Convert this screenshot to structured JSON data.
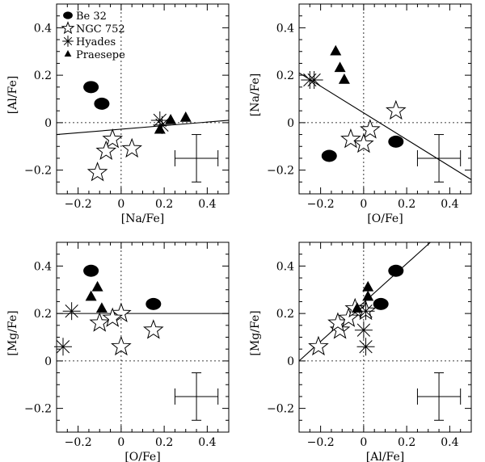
{
  "chart_data": {
    "type": "scatter",
    "legend": {
      "placement": "top-left of first panel",
      "entries": [
        {
          "name": "Be 32",
          "marker": "filled-ellipse"
        },
        {
          "name": "NGC 752",
          "marker": "open-star"
        },
        {
          "name": "Hyades",
          "marker": "asterisk"
        },
        {
          "name": "Praesepe",
          "marker": "filled-triangle"
        }
      ]
    },
    "panels": [
      {
        "id": "al-vs-na",
        "xlabel": "[Na/Fe]",
        "ylabel": "[Al/Fe]",
        "xlim": [
          -0.3,
          0.5
        ],
        "ylim": [
          -0.3,
          0.5
        ],
        "xticks": [
          -0.2,
          0,
          0.2,
          0.4
        ],
        "xtick_labels": [
          "−0.2",
          "0",
          "0.2",
          "0.4"
        ],
        "yticks": [
          -0.2,
          0,
          0.2,
          0.4
        ],
        "ytick_labels": [
          "−0.2",
          "0",
          "0.2",
          "0.4"
        ],
        "zero_lines": true,
        "fit_line": {
          "x": [
            -0.3,
            0.5
          ],
          "y": [
            -0.05,
            0.01
          ]
        },
        "error_bar": {
          "x": 0.35,
          "y": -0.15,
          "dx": 0.1,
          "dy": 0.1
        },
        "series": [
          {
            "name": "Be 32",
            "points": [
              [
                -0.14,
                0.15
              ],
              [
                -0.09,
                0.08
              ]
            ]
          },
          {
            "name": "NGC 752",
            "points": [
              [
                -0.04,
                -0.07
              ],
              [
                -0.07,
                -0.12
              ],
              [
                0.05,
                -0.11
              ],
              [
                -0.11,
                -0.21
              ]
            ]
          },
          {
            "name": "Hyades",
            "points": [
              [
                0.18,
                0.01
              ],
              [
                0.19,
                -0.01
              ]
            ]
          },
          {
            "name": "Praesepe",
            "points": [
              [
                0.18,
                -0.03
              ],
              [
                0.23,
                0.01
              ],
              [
                0.3,
                0.02
              ]
            ]
          }
        ]
      },
      {
        "id": "na-vs-o",
        "xlabel": "[O/Fe]",
        "ylabel": "[Na/Fe]",
        "xlim": [
          -0.3,
          0.5
        ],
        "ylim": [
          -0.3,
          0.5
        ],
        "xticks": [
          -0.2,
          0,
          0.2,
          0.4
        ],
        "xtick_labels": [
          "−0.2",
          "0",
          "0.2",
          "0.4"
        ],
        "yticks": [
          -0.2,
          0,
          0.2,
          0.4
        ],
        "ytick_labels": [
          "−0.2",
          "0",
          "0.2",
          "0.4"
        ],
        "zero_lines": true,
        "fit_line": {
          "x": [
            -0.3,
            0.5
          ],
          "y": [
            0.21,
            -0.24
          ]
        },
        "error_bar": {
          "x": 0.35,
          "y": -0.15,
          "dx": 0.1,
          "dy": 0.1
        },
        "series": [
          {
            "name": "Be 32",
            "points": [
              [
                -0.16,
                -0.14
              ],
              [
                0.15,
                -0.08
              ]
            ]
          },
          {
            "name": "NGC 752",
            "points": [
              [
                0.15,
                0.05
              ],
              [
                0.03,
                -0.03
              ],
              [
                -0.06,
                -0.07
              ],
              [
                0.0,
                -0.09
              ]
            ]
          },
          {
            "name": "Hyades",
            "points": [
              [
                -0.25,
                0.18
              ],
              [
                -0.23,
                0.18
              ]
            ]
          },
          {
            "name": "Praesepe",
            "points": [
              [
                -0.13,
                0.3
              ],
              [
                -0.11,
                0.23
              ],
              [
                -0.09,
                0.18
              ]
            ]
          }
        ]
      },
      {
        "id": "mg-vs-o",
        "xlabel": "[O/Fe]",
        "ylabel": "[Mg/Fe]",
        "xlim": [
          -0.3,
          0.5
        ],
        "ylim": [
          -0.3,
          0.5
        ],
        "xticks": [
          -0.2,
          0,
          0.2,
          0.4
        ],
        "xtick_labels": [
          "−0.2",
          "0",
          "0.2",
          "0.4"
        ],
        "yticks": [
          -0.2,
          0,
          0.2,
          0.4
        ],
        "ytick_labels": [
          "−0.2",
          "0",
          "0.2",
          "0.4"
        ],
        "zero_lines": true,
        "fit_line": {
          "x": [
            -0.3,
            0.5
          ],
          "y": [
            0.2,
            0.2
          ]
        },
        "error_bar": {
          "x": 0.35,
          "y": -0.15,
          "dx": 0.1,
          "dy": 0.1
        },
        "series": [
          {
            "name": "Be 32",
            "points": [
              [
                -0.14,
                0.38
              ],
              [
                0.15,
                0.24
              ]
            ]
          },
          {
            "name": "NGC 752",
            "points": [
              [
                0.0,
                0.2
              ],
              [
                -0.1,
                0.16
              ],
              [
                -0.04,
                0.18
              ],
              [
                0.15,
                0.13
              ],
              [
                0.0,
                0.06
              ]
            ]
          },
          {
            "name": "Hyades",
            "points": [
              [
                -0.23,
                0.21
              ],
              [
                -0.27,
                0.06
              ]
            ]
          },
          {
            "name": "Praesepe",
            "points": [
              [
                -0.14,
                0.27
              ],
              [
                -0.11,
                0.31
              ],
              [
                -0.09,
                0.22
              ]
            ]
          }
        ]
      },
      {
        "id": "mg-vs-al",
        "xlabel": "[Al/Fe]",
        "ylabel": "[Mg/Fe]",
        "xlim": [
          -0.3,
          0.5
        ],
        "ylim": [
          -0.3,
          0.5
        ],
        "xticks": [
          -0.2,
          0,
          0.2,
          0.4
        ],
        "xtick_labels": [
          "−0.2",
          "0",
          "0.2",
          "0.4"
        ],
        "yticks": [
          -0.2,
          0,
          0.2,
          0.4
        ],
        "ytick_labels": [
          "−0.2",
          "0",
          "0.2",
          "0.4"
        ],
        "zero_lines": true,
        "fit_line": {
          "x": [
            -0.3,
            0.31
          ],
          "y": [
            0.0,
            0.5
          ]
        },
        "error_bar": {
          "x": 0.35,
          "y": -0.15,
          "dx": 0.1,
          "dy": 0.1
        },
        "series": [
          {
            "name": "Be 32",
            "points": [
              [
                0.15,
                0.38
              ],
              [
                0.08,
                0.24
              ]
            ]
          },
          {
            "name": "NGC 752",
            "points": [
              [
                -0.21,
                0.06
              ],
              [
                -0.11,
                0.13
              ],
              [
                -0.12,
                0.16
              ],
              [
                -0.07,
                0.18
              ],
              [
                0.01,
                0.21
              ],
              [
                -0.04,
                0.22
              ]
            ]
          },
          {
            "name": "Hyades",
            "points": [
              [
                0.0,
                0.13
              ],
              [
                0.01,
                0.06
              ],
              [
                0.01,
                0.21
              ]
            ]
          },
          {
            "name": "Praesepe",
            "points": [
              [
                0.02,
                0.31
              ],
              [
                0.02,
                0.27
              ],
              [
                -0.03,
                0.22
              ]
            ]
          }
        ]
      }
    ]
  }
}
